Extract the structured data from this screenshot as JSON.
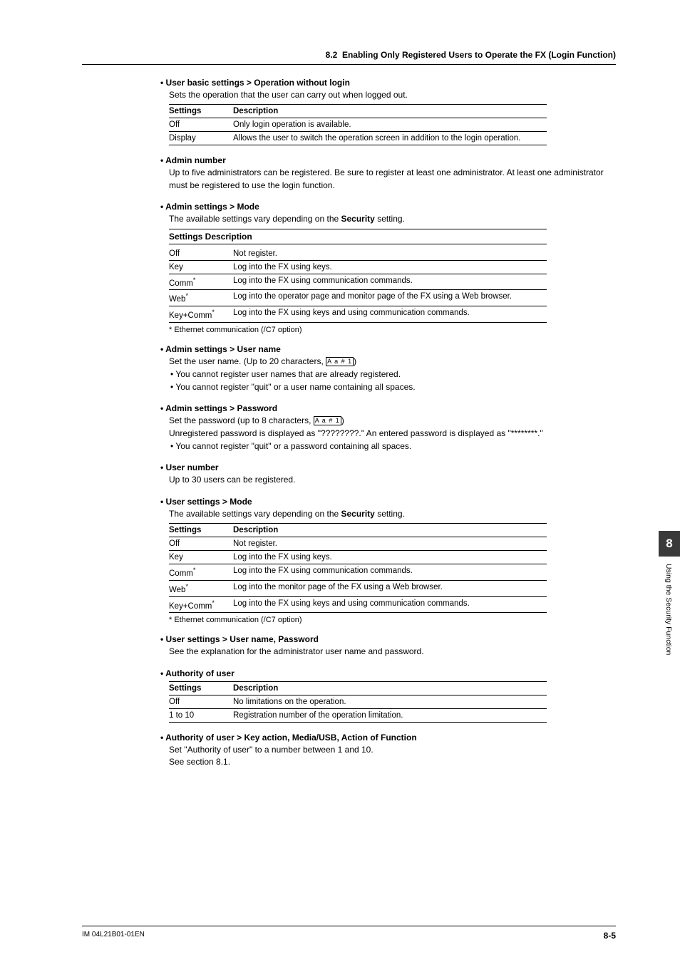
{
  "header": {
    "section_number": "8.2",
    "section_title": "Enabling Only Registered Users to Operate the FX (Login Function)"
  },
  "sections": [
    {
      "heading": "User basic settings > Operation without login",
      "intro": "Sets the operation that the user can carry out when logged out.",
      "table": {
        "headers": [
          "Settings",
          "Description"
        ],
        "rows": [
          [
            "Off",
            "Only login operation is available."
          ],
          [
            "Display",
            "Allows the user to switch the operation screen in addition to the login operation."
          ]
        ]
      }
    },
    {
      "heading": "Admin number",
      "intro": "Up to five administrators can be registered. Be sure to register at least one administrator. At least one administrator must be registered to use the login function."
    },
    {
      "heading": "Admin settings > Mode",
      "intro_html": "The available settings vary depending on the <b>Security</b> setting.",
      "table_combined_header": "Settings Description",
      "table": {
        "rows": [
          [
            "Off",
            "Not register."
          ],
          [
            "Key",
            "Log into the FX using keys."
          ],
          [
            "Comm<span class='sup'>*</span>",
            "Log into the FX using communication commands."
          ],
          [
            "Web<span class='sup'>*</span>",
            "Log into the operator page and monitor page of the FX using a Web browser."
          ],
          [
            "Key+Comm<span class='sup'>*</span>",
            "Log into the FX using keys and using communication commands."
          ]
        ]
      },
      "footnote": "*   Ethernet communication (/C7 option)"
    },
    {
      "heading": "Admin settings > User name",
      "intro_html": "Set the user name. (Up to 20 characters, <span class='charbox'>A a # 1</span>)",
      "bullets": [
        "You cannot register user names that are already registered.",
        "You cannot register \"quit\" or a user name containing all spaces."
      ]
    },
    {
      "heading": "Admin settings > Password",
      "intro_html": "Set the password (up to 8 characters, <span class='charbox'>A a # 1</span>)<br>Unregistered password is displayed as \"????????.\" An entered password is displayed as \"********.\"",
      "bullets": [
        "You cannot register \"quit\" or a password containing all spaces."
      ]
    },
    {
      "heading": "User number",
      "intro": "Up to 30 users can be registered."
    },
    {
      "heading": "User settings > Mode",
      "intro_html": "The available settings vary depending on the <b>Security</b> setting.",
      "table": {
        "headers": [
          "Settings",
          "Description"
        ],
        "rows": [
          [
            "Off",
            "Not register."
          ],
          [
            "Key",
            "Log into the FX using keys."
          ],
          [
            "Comm<span class='sup'>*</span>",
            "Log into the FX using communication commands."
          ],
          [
            "Web<span class='sup'>*</span>",
            "Log into the monitor page of the FX using a Web browser."
          ],
          [
            "Key+Comm<span class='sup'>*</span>",
            "Log into the FX using keys and using communication commands."
          ]
        ]
      },
      "footnote": "*   Ethernet communication (/C7 option)"
    },
    {
      "heading": "User settings > User name, Password",
      "intro": "See the explanation for the administrator user name and password."
    },
    {
      "heading": "Authority of user",
      "table": {
        "headers": [
          "Settings",
          "Description"
        ],
        "rows": [
          [
            "Off",
            "No limitations on the operation."
          ],
          [
            "1 to 10",
            "Registration number of the operation limitation."
          ]
        ]
      }
    },
    {
      "heading": "Authority of user > Key action, Media/USB, Action of Function",
      "intro": "Set \"Authority of user\" to a number between 1 and 10.\nSee section 8.1."
    }
  ],
  "side_tab": {
    "number": "8",
    "label": "Using the Security Function"
  },
  "footer": {
    "left": "IM 04L21B01-01EN",
    "right": "8-5"
  }
}
